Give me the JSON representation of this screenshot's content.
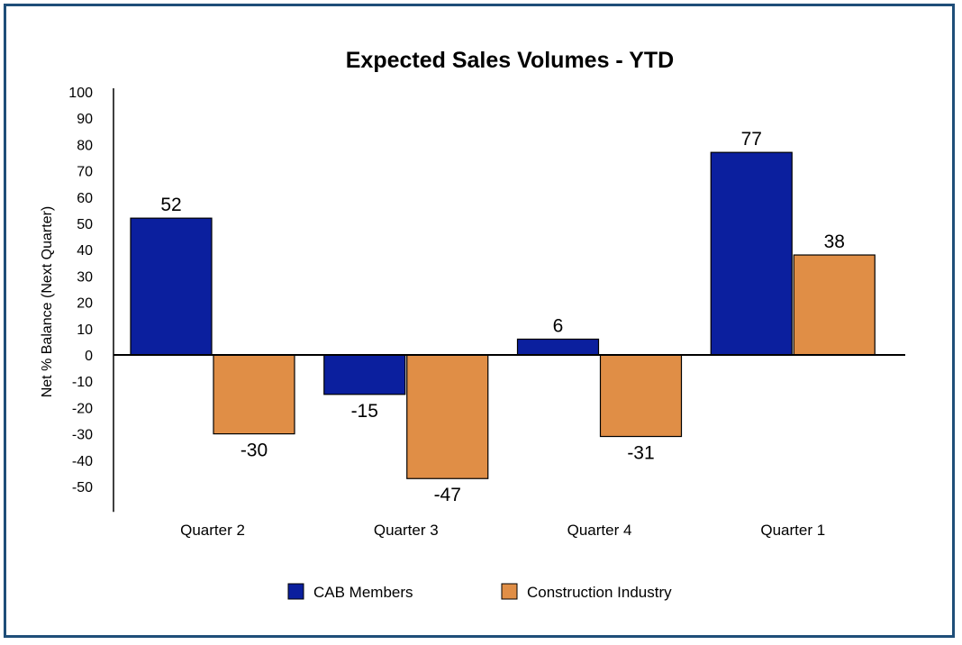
{
  "chart_data": {
    "type": "bar",
    "title": "Expected Sales Volumes - YTD",
    "ylabel": "Net % Balance (Next Quarter)",
    "xlabel": "",
    "categories": [
      "Quarter 2",
      "Quarter 3",
      "Quarter 4",
      "Quarter 1"
    ],
    "series": [
      {
        "name": "CAB Members",
        "values": [
          52,
          -15,
          6,
          77
        ],
        "color": "#0b1f9e"
      },
      {
        "name": "Construction Industry",
        "values": [
          -30,
          -47,
          -31,
          38
        ],
        "color": "#e08e46"
      }
    ],
    "ylim": [
      -60,
      100
    ],
    "yticks": [
      100,
      90,
      80,
      70,
      60,
      50,
      40,
      30,
      20,
      10,
      0,
      -10,
      -20,
      -30,
      -40,
      -50
    ],
    "data_labels": true,
    "legend_position": "bottom",
    "grid": false
  }
}
